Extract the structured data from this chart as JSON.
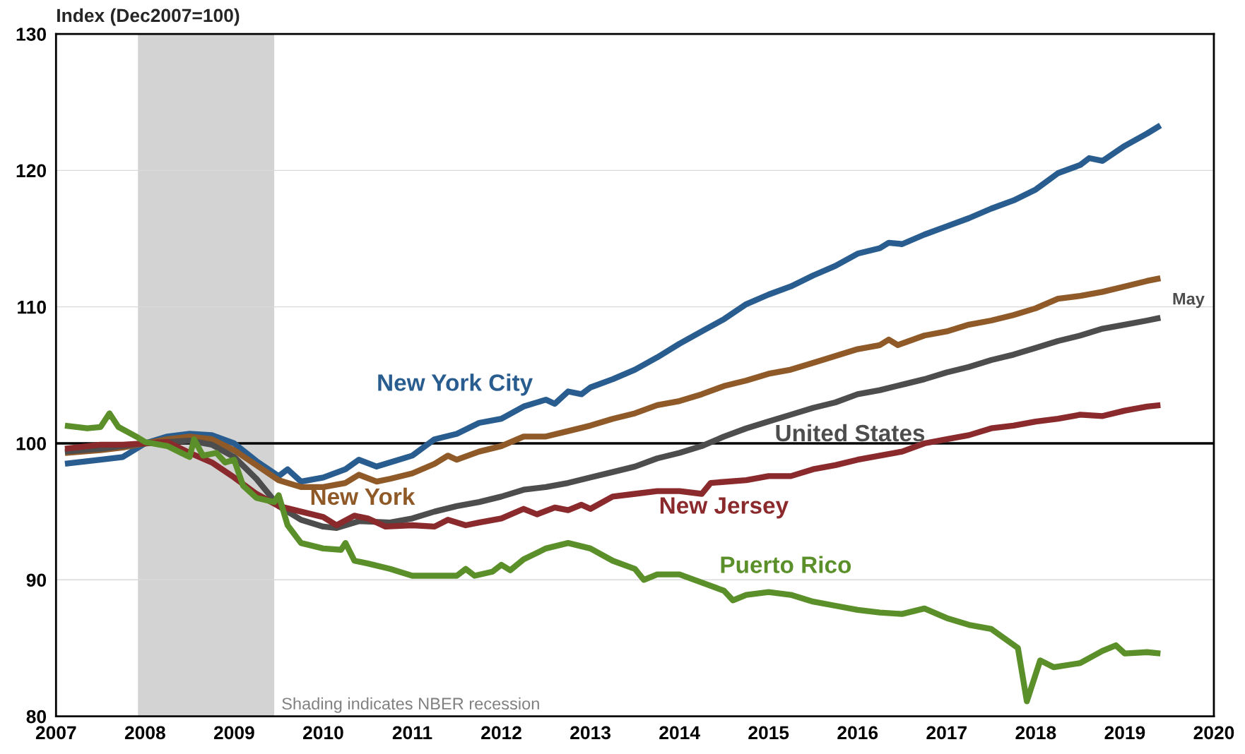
{
  "chart_data": {
    "type": "line",
    "ylabel": "Index (Dec2007=100)",
    "xlim": [
      2007,
      2020
    ],
    "xticks": [
      2007,
      2008,
      2009,
      2010,
      2011,
      2012,
      2013,
      2014,
      2015,
      2016,
      2017,
      2018,
      2019,
      2020
    ],
    "ylim": [
      80,
      130
    ],
    "yticks": [
      80,
      90,
      100,
      110,
      120,
      130
    ],
    "grid": "y",
    "legend": false,
    "line_style": "solid",
    "marker": "none",
    "series": [
      {
        "name": "New York City",
        "color": "#2a5d8f",
        "x": [
          2007.1,
          2007.5,
          2007.75,
          2008.0,
          2008.25,
          2008.5,
          2008.75,
          2009.0,
          2009.25,
          2009.5,
          2009.6,
          2009.75,
          2010.0,
          2010.25,
          2010.4,
          2010.6,
          2010.75,
          2011.0,
          2011.25,
          2011.5,
          2011.75,
          2012.0,
          2012.25,
          2012.5,
          2012.6,
          2012.75,
          2012.9,
          2013.0,
          2013.25,
          2013.5,
          2013.75,
          2014.0,
          2014.25,
          2014.5,
          2014.75,
          2015.0,
          2015.25,
          2015.5,
          2015.75,
          2016.0,
          2016.25,
          2016.35,
          2016.5,
          2016.75,
          2017.0,
          2017.25,
          2017.5,
          2017.75,
          2018.0,
          2018.25,
          2018.5,
          2018.6,
          2018.75,
          2019.0,
          2019.25,
          2019.4
        ],
        "values": [
          98.5,
          98.8,
          99.0,
          100.0,
          100.5,
          100.7,
          100.6,
          100.0,
          98.7,
          97.6,
          98.1,
          97.2,
          97.5,
          98.1,
          98.8,
          98.3,
          98.6,
          99.1,
          100.3,
          100.7,
          101.5,
          101.8,
          102.7,
          103.2,
          102.9,
          103.8,
          103.6,
          104.1,
          104.7,
          105.4,
          106.3,
          107.3,
          108.2,
          109.1,
          110.2,
          110.9,
          111.5,
          112.3,
          113.0,
          113.9,
          114.3,
          114.7,
          114.6,
          115.3,
          115.9,
          116.5,
          117.2,
          117.8,
          118.6,
          119.8,
          120.4,
          120.9,
          120.7,
          121.8,
          122.7,
          123.3
        ]
      },
      {
        "name": "New York",
        "color": "#8f5a28",
        "x": [
          2007.1,
          2007.5,
          2007.75,
          2008.0,
          2008.25,
          2008.5,
          2008.75,
          2009.0,
          2009.25,
          2009.5,
          2009.75,
          2010.0,
          2010.25,
          2010.4,
          2010.6,
          2010.75,
          2011.0,
          2011.25,
          2011.4,
          2011.5,
          2011.75,
          2012.0,
          2012.25,
          2012.5,
          2012.75,
          2013.0,
          2013.25,
          2013.5,
          2013.75,
          2014.0,
          2014.25,
          2014.5,
          2014.75,
          2015.0,
          2015.25,
          2015.5,
          2015.75,
          2016.0,
          2016.25,
          2016.35,
          2016.45,
          2016.75,
          2017.0,
          2017.25,
          2017.5,
          2017.75,
          2018.0,
          2018.25,
          2018.5,
          2018.75,
          2019.0,
          2019.25,
          2019.4
        ],
        "values": [
          99.3,
          99.5,
          99.7,
          100.0,
          100.3,
          100.5,
          100.3,
          99.5,
          98.4,
          97.3,
          96.8,
          96.8,
          97.1,
          97.7,
          97.2,
          97.4,
          97.8,
          98.5,
          99.1,
          98.8,
          99.4,
          99.8,
          100.5,
          100.5,
          100.9,
          101.3,
          101.8,
          102.2,
          102.8,
          103.1,
          103.6,
          104.2,
          104.6,
          105.1,
          105.4,
          105.9,
          106.4,
          106.9,
          107.2,
          107.6,
          107.2,
          107.9,
          108.2,
          108.7,
          109.0,
          109.4,
          109.9,
          110.6,
          110.8,
          111.1,
          111.5,
          111.9,
          112.1
        ]
      },
      {
        "name": "United States",
        "color": "#4d4d4d",
        "x": [
          2007.1,
          2007.5,
          2008.0,
          2008.5,
          2008.75,
          2009.0,
          2009.25,
          2009.5,
          2009.75,
          2010.0,
          2010.15,
          2010.4,
          2010.75,
          2011.0,
          2011.25,
          2011.5,
          2011.75,
          2012.0,
          2012.25,
          2012.5,
          2012.75,
          2013.0,
          2013.25,
          2013.5,
          2013.75,
          2014.0,
          2014.25,
          2014.5,
          2014.75,
          2015.0,
          2015.25,
          2015.5,
          2015.75,
          2016.0,
          2016.25,
          2016.5,
          2016.75,
          2017.0,
          2017.25,
          2017.5,
          2017.75,
          2018.0,
          2018.25,
          2018.5,
          2018.75,
          2019.0,
          2019.25,
          2019.4
        ],
        "values": [
          99.4,
          99.6,
          100.0,
          100.2,
          99.9,
          99.0,
          97.4,
          95.4,
          94.4,
          93.9,
          93.8,
          94.3,
          94.2,
          94.5,
          95.0,
          95.4,
          95.7,
          96.1,
          96.6,
          96.8,
          97.1,
          97.5,
          97.9,
          98.3,
          98.9,
          99.3,
          99.8,
          100.5,
          101.1,
          101.6,
          102.1,
          102.6,
          103.0,
          103.6,
          103.9,
          104.3,
          104.7,
          105.2,
          105.6,
          106.1,
          106.5,
          107.0,
          107.5,
          107.9,
          108.4,
          108.7,
          109.0,
          109.2
        ]
      },
      {
        "name": "New Jersey",
        "color": "#8b2a2c",
        "x": [
          2007.1,
          2007.5,
          2007.75,
          2008.0,
          2008.25,
          2008.5,
          2008.75,
          2009.0,
          2009.25,
          2009.5,
          2009.75,
          2010.0,
          2010.15,
          2010.35,
          2010.5,
          2010.7,
          2011.0,
          2011.25,
          2011.4,
          2011.6,
          2011.75,
          2012.0,
          2012.25,
          2012.4,
          2012.6,
          2012.75,
          2012.9,
          2013.0,
          2013.25,
          2013.5,
          2013.75,
          2014.0,
          2014.25,
          2014.35,
          2014.75,
          2015.0,
          2015.25,
          2015.5,
          2015.75,
          2016.0,
          2016.25,
          2016.5,
          2016.75,
          2017.0,
          2017.25,
          2017.5,
          2017.75,
          2018.0,
          2018.25,
          2018.5,
          2018.75,
          2019.0,
          2019.25,
          2019.4
        ],
        "values": [
          99.6,
          99.9,
          99.9,
          100.0,
          100.1,
          99.3,
          98.6,
          97.5,
          96.3,
          95.4,
          95.0,
          94.6,
          94.0,
          94.7,
          94.5,
          93.9,
          94.0,
          93.9,
          94.4,
          94.0,
          94.2,
          94.5,
          95.2,
          94.8,
          95.3,
          95.1,
          95.5,
          95.2,
          96.1,
          96.3,
          96.5,
          96.5,
          96.3,
          97.1,
          97.3,
          97.6,
          97.6,
          98.1,
          98.4,
          98.8,
          99.1,
          99.4,
          100.0,
          100.3,
          100.6,
          101.1,
          101.3,
          101.6,
          101.8,
          102.1,
          102.0,
          102.4,
          102.7,
          102.8
        ]
      },
      {
        "name": "Puerto Rico",
        "color": "#5a8f29",
        "x": [
          2007.1,
          2007.35,
          2007.5,
          2007.6,
          2007.7,
          2007.9,
          2008.0,
          2008.25,
          2008.5,
          2008.55,
          2008.65,
          2008.8,
          2008.9,
          2009.0,
          2009.1,
          2009.25,
          2009.45,
          2009.5,
          2009.6,
          2009.75,
          2010.0,
          2010.2,
          2010.25,
          2010.35,
          2010.5,
          2010.75,
          2011.0,
          2011.25,
          2011.5,
          2011.6,
          2011.7,
          2011.9,
          2012.0,
          2012.1,
          2012.25,
          2012.5,
          2012.75,
          2013.0,
          2013.25,
          2013.5,
          2013.6,
          2013.75,
          2014.0,
          2014.25,
          2014.5,
          2014.6,
          2014.75,
          2015.0,
          2015.25,
          2015.5,
          2015.75,
          2016.0,
          2016.25,
          2016.5,
          2016.75,
          2017.0,
          2017.25,
          2017.5,
          2017.65,
          2017.8,
          2017.9,
          2018.05,
          2018.2,
          2018.5,
          2018.75,
          2018.9,
          2019.0,
          2019.25,
          2019.4
        ],
        "values": [
          101.3,
          101.1,
          101.2,
          102.2,
          101.2,
          100.5,
          100.1,
          99.8,
          99.0,
          100.3,
          99.1,
          99.3,
          98.6,
          98.8,
          96.9,
          96.0,
          95.7,
          96.2,
          94.0,
          92.7,
          92.3,
          92.2,
          92.7,
          91.4,
          91.2,
          90.8,
          90.3,
          90.3,
          90.3,
          90.8,
          90.3,
          90.6,
          91.1,
          90.7,
          91.5,
          92.3,
          92.7,
          92.3,
          91.4,
          90.8,
          90.0,
          90.4,
          90.4,
          89.8,
          89.2,
          88.5,
          88.9,
          89.1,
          88.9,
          88.4,
          88.1,
          87.8,
          87.6,
          87.5,
          87.9,
          87.2,
          86.7,
          86.4,
          85.7,
          85.0,
          81.1,
          84.1,
          83.6,
          83.9,
          84.8,
          85.2,
          84.6,
          84.7,
          84.6
        ]
      }
    ],
    "ref_lines": [
      {
        "axis": "y",
        "value": 100,
        "color": "#000000",
        "line_style": "solid"
      }
    ],
    "bands": [
      {
        "axis": "x",
        "from": 2007.92,
        "to": 2009.45,
        "label": "Shading indicates NBER recession",
        "color": "#d3d3d3"
      }
    ],
    "annotations": [
      "May"
    ]
  }
}
